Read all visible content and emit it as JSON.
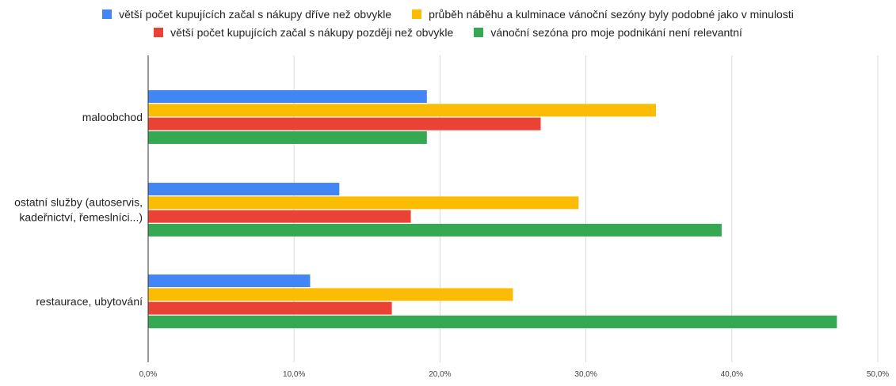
{
  "chart_data": {
    "type": "bar",
    "orientation": "horizontal",
    "categories": [
      [
        "maloobchod"
      ],
      [
        "ostatní služby (autoservis,",
        "kadeřnictví, řemeslníci...)"
      ],
      [
        "restaurace, ubytování"
      ]
    ],
    "series": [
      {
        "name": "větší počet kupujících začal s nákupy dříve než obvykle",
        "color": "#4285f4",
        "values": [
          19.1,
          13.1,
          11.1
        ]
      },
      {
        "name": "průběh náběhu a kulminace vánoční sezóny byly podobné jako v minulosti",
        "color": "#fbbc04",
        "values": [
          34.8,
          29.5,
          25.0
        ]
      },
      {
        "name": "větší počet kupujících začal s nákupy později než obvykle",
        "color": "#ea4335",
        "values": [
          26.9,
          18.0,
          16.7
        ]
      },
      {
        "name": "vánoční sezóna pro moje podnikání není relevantní",
        "color": "#34a853",
        "values": [
          19.1,
          39.3,
          47.2
        ]
      }
    ],
    "xlim": [
      0,
      50
    ],
    "xticks": [
      "0,0%",
      "10,0%",
      "20,0%",
      "30,0%",
      "40,0%",
      "50,0%"
    ],
    "grid": true,
    "legend_position": "top",
    "title": "",
    "xlabel": "",
    "ylabel": ""
  }
}
